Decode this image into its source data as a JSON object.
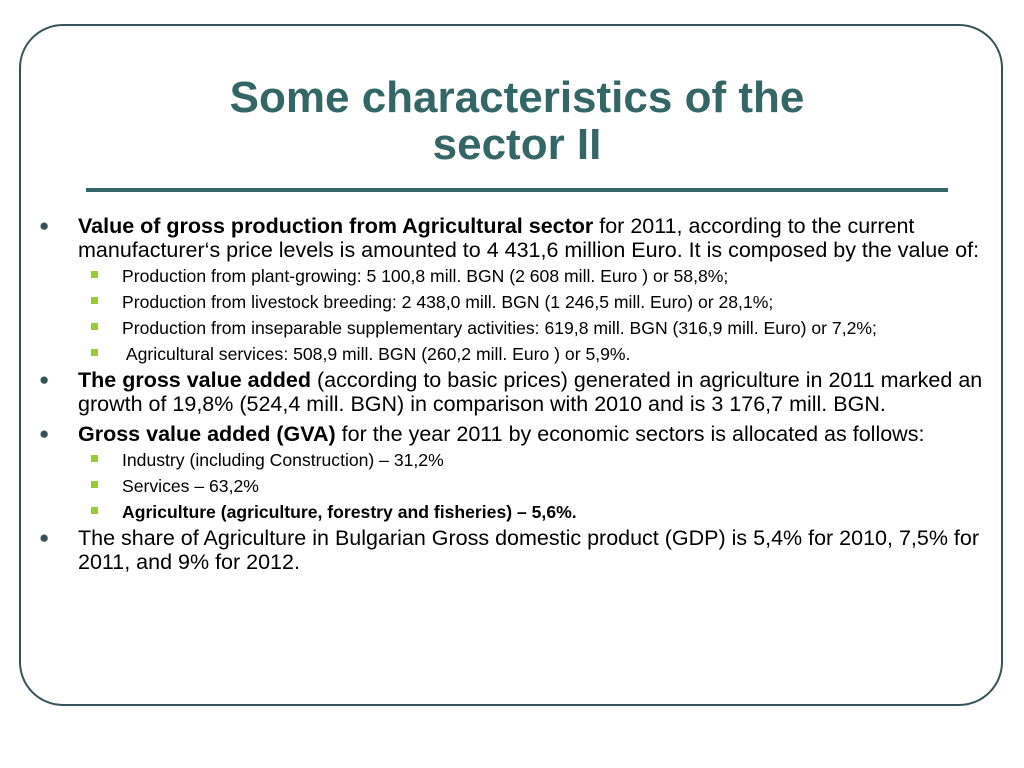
{
  "slide": {
    "title_line1": "Some characteristics of the",
    "title_line2": "sector II"
  },
  "items": [
    {
      "bold": "Value of gross production from Agricultural sector",
      "text": " for 2011, according to the current manufacturer‘s price levels is amounted to 4 431,6 million Euro. It is composed by the value of:",
      "sub": [
        "Production from plant-growing: 5 100,8 mill. BGN (2 608 mill. Euro ) or 58,8%;",
        "Production from livestock breeding: 2 438,0 mill. BGN (1 246,5 mill. Euro) or 28,1%;",
        "Production from inseparable supplementary activities: 619,8 mill. BGN (316,9 mill. Euro) or 7,2%;",
        " Agricultural services: 508,9 mill. BGN (260,2 mill. Euro ) or 5,9%."
      ]
    },
    {
      "bold": "The gross value added",
      "text": " (according to basic prices) generated in agriculture in 2011 marked an growth of 19,8% (524,4 mill. BGN) in comparison with 2010 and is 3 176,7 mill. BGN."
    },
    {
      "bold": "Gross value added (GVA)",
      "text": " for the year 2011 by economic sectors is allocated as follows:",
      "sub": [
        "Industry (including Construction) – 31,2%",
        "Services – 63,2%",
        "Agriculture (agriculture, forestry and fisheries) – 5,6%."
      ]
    },
    {
      "text": "The share of Agriculture in Bulgarian Gross domestic product (GDP) is 5,4% for 2010, 7,5% for 2011, and 9% for 2012."
    }
  ],
  "colors": {
    "title": "#336666",
    "frame": "#35545a",
    "sub_bullet": "#99cc33"
  }
}
